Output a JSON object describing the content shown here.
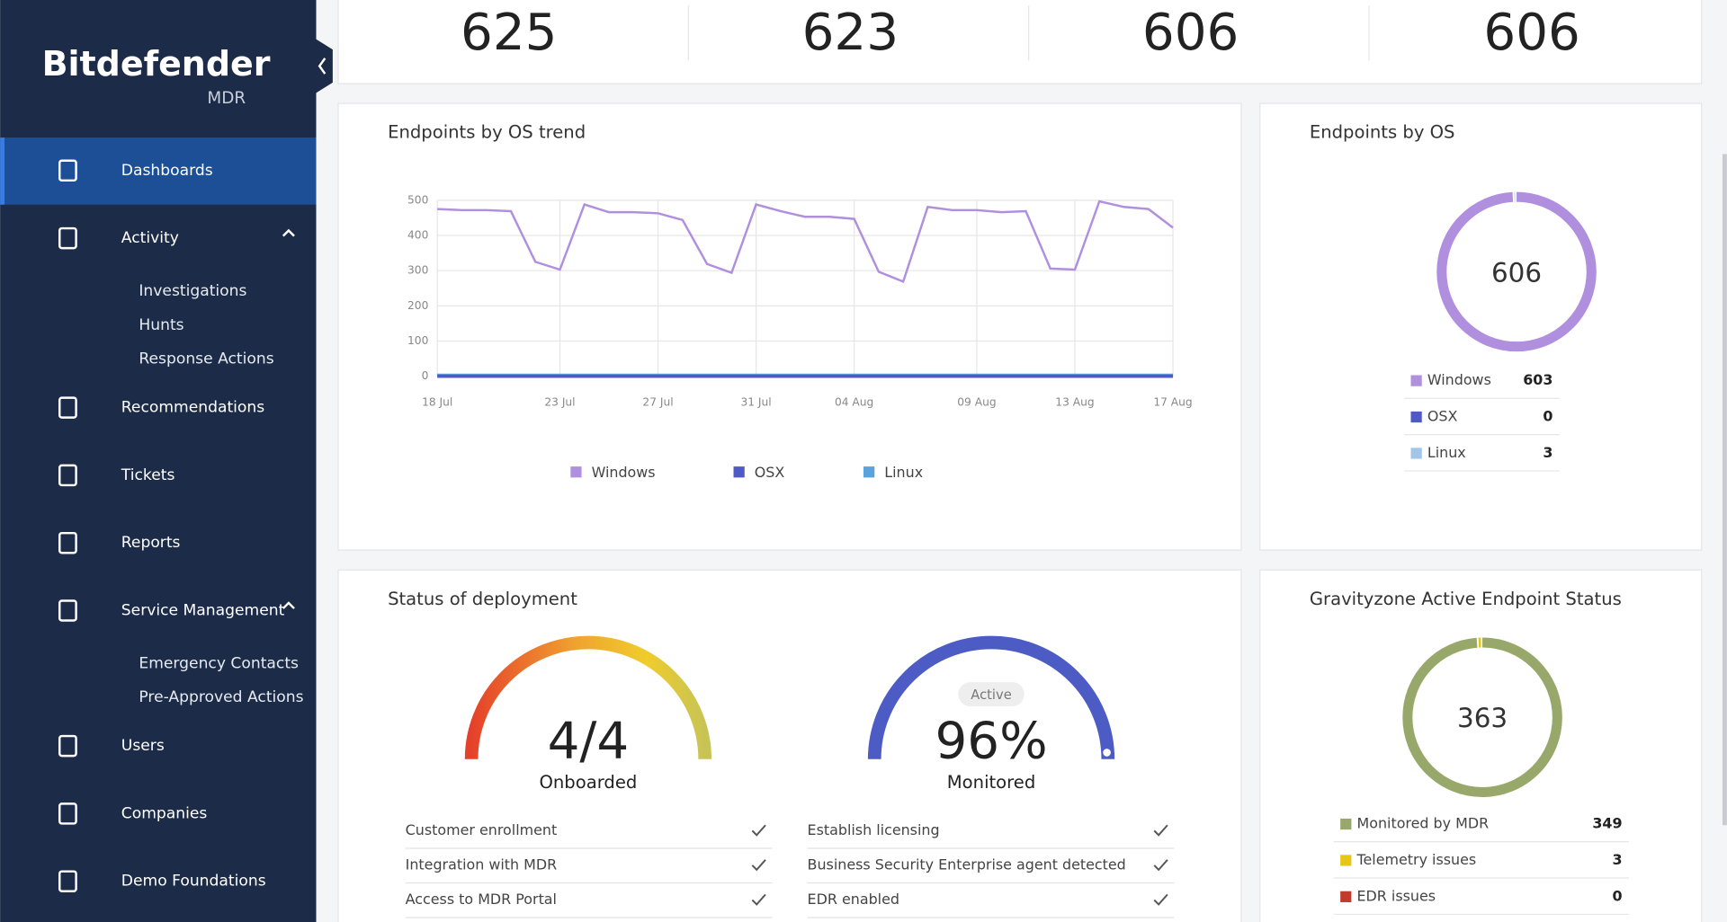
{
  "sidebar": {
    "brand": "Bitdefender",
    "product": "MDR",
    "nav": [
      {
        "label": "Dashboards"
      },
      {
        "label": "Activity",
        "items": [
          "Investigations",
          "Hunts",
          "Response Actions"
        ]
      },
      {
        "label": "Recommendations"
      },
      {
        "label": "Tickets"
      },
      {
        "label": "Reports"
      },
      {
        "label": "Service Management",
        "items": [
          "Emergency Contacts",
          "Pre-Approved Actions"
        ]
      },
      {
        "label": "Users"
      },
      {
        "label": "Companies"
      },
      {
        "label": "Demo Foundations"
      }
    ]
  },
  "kpis": [
    625,
    623,
    606,
    606
  ],
  "chart_data": [
    {
      "type": "line",
      "title": "Endpoints by OS trend",
      "categories": [
        "18 Jul",
        null,
        null,
        null,
        null,
        "23 Jul",
        null,
        null,
        null,
        "27 Jul",
        null,
        null,
        null,
        "31 Jul",
        null,
        null,
        null,
        "04 Aug",
        null,
        null,
        null,
        null,
        "09 Aug",
        null,
        null,
        null,
        "13 Aug",
        null,
        null,
        null,
        "17 Aug"
      ],
      "series": [
        {
          "name": "Windows",
          "color": "#b08fdf",
          "values": [
            475,
            472,
            472,
            469,
            325,
            303,
            488,
            466,
            466,
            463,
            444,
            319,
            294,
            488,
            469,
            453,
            453,
            447,
            297,
            269,
            481,
            472,
            472,
            466,
            469,
            306,
            303,
            497,
            481,
            475,
            422
          ]
        },
        {
          "name": "OSX",
          "color": "#4f5ac6",
          "values": [
            0,
            0,
            0,
            0,
            0,
            0,
            0,
            0,
            0,
            0,
            0,
            0,
            0,
            0,
            0,
            0,
            0,
            0,
            0,
            0,
            0,
            0,
            0,
            0,
            0,
            0,
            0,
            0,
            0,
            0,
            0
          ]
        },
        {
          "name": "Linux",
          "color": "#5aa3dc",
          "values": [
            3,
            3,
            3,
            3,
            3,
            3,
            3,
            3,
            3,
            3,
            3,
            3,
            3,
            3,
            3,
            3,
            3,
            3,
            3,
            3,
            3,
            3,
            3,
            3,
            3,
            3,
            3,
            3,
            3,
            3,
            3
          ]
        }
      ],
      "ylim": [
        0,
        500
      ],
      "yticks": [
        0,
        100,
        200,
        300,
        400,
        500
      ],
      "grid": true
    },
    {
      "type": "donut",
      "title": "Endpoints by OS",
      "total": 606,
      "categories": [
        "Windows",
        "OSX",
        "Linux"
      ],
      "values": [
        603,
        0,
        3
      ],
      "colors": [
        "#b08fdf",
        "#4f5ac6",
        "#a3c6e8"
      ]
    },
    {
      "type": "donut",
      "title": "Gravityzone Active Endpoint Status",
      "total": 363,
      "categories": [
        "Monitored by MDR",
        "Telemetry issues",
        "EDR issues"
      ],
      "values": [
        349,
        3,
        0
      ],
      "colors": [
        "#97a86a",
        "#e6c619",
        "#c23a2b"
      ]
    }
  ],
  "deployment": {
    "title": "Status of deployment",
    "gauges": [
      {
        "value": "4/4",
        "label": "Onboarded"
      },
      {
        "badge": "Active",
        "value": "96%",
        "label": "Monitored"
      }
    ],
    "checklists": [
      [
        "Customer enrollment",
        "Integration with MDR",
        "Access to MDR Portal"
      ],
      [
        "Establish licensing",
        "Business Security Enterprise agent detected",
        "EDR enabled"
      ]
    ]
  }
}
